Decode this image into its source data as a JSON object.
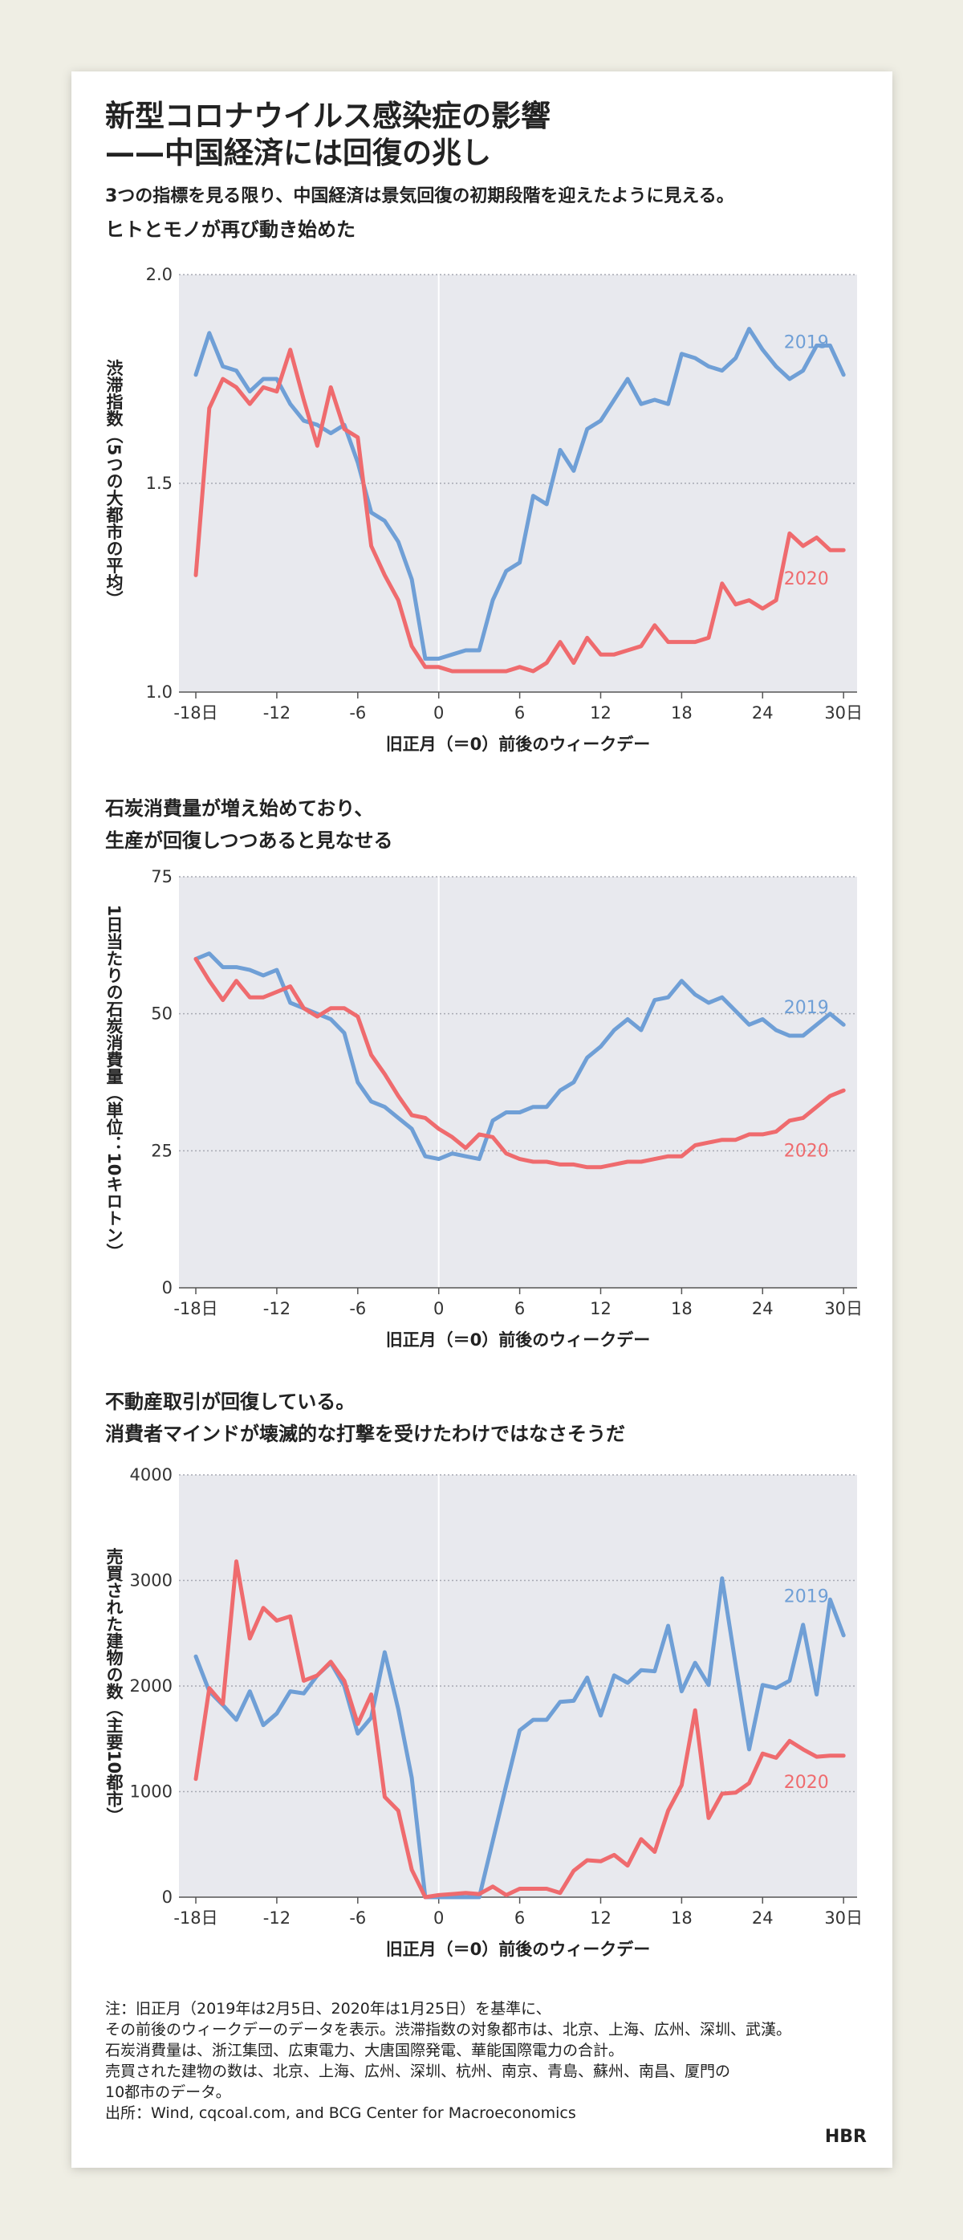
{
  "header": {
    "title": [
      "新型コロナウイルス感染症の影響",
      "——中国経済には回復の兆し"
    ],
    "subtitle": "3つの指標を見る限り、中国経済は景気回復の初期段階を迎えたように見える。"
  },
  "chart_data": [
    {
      "type": "line",
      "title": [
        "ヒトとモノが再び動き始めた"
      ],
      "xlabel": "旧正月（＝0）前後のウィークデー",
      "ylabel": "渋滞指数（5つの大都市の平均）",
      "x": [
        -18,
        -17,
        -16,
        -15,
        -14,
        -13,
        -12,
        -11,
        -10,
        -9,
        -8,
        -7,
        -6,
        -5,
        -4,
        -3,
        -2,
        -1,
        0,
        1,
        2,
        3,
        4,
        5,
        6,
        7,
        8,
        9,
        10,
        11,
        12,
        13,
        14,
        15,
        16,
        17,
        18,
        19,
        20,
        21,
        22,
        23,
        24,
        25,
        26,
        27,
        28,
        29,
        30
      ],
      "xlim": [
        -19.25,
        31
      ],
      "xticks": [
        {
          "value": -18,
          "label": "-18日"
        },
        -12,
        -6,
        0,
        6,
        12,
        18,
        24,
        {
          "value": 30,
          "label": "30日"
        }
      ],
      "ylim": [
        1,
        2
      ],
      "yticks": [
        {
          "value": 1,
          "label": "1.0"
        },
        {
          "value": 1.5,
          "label": "1.5"
        },
        {
          "value": 2,
          "label": "2.0"
        }
      ],
      "grid": true,
      "series": [
        {
          "name": "2019",
          "color": "#6f9fd6",
          "values": [
            1.76,
            1.86,
            1.78,
            1.77,
            1.72,
            1.75,
            1.75,
            1.69,
            1.65,
            1.64,
            1.62,
            1.64,
            1.55,
            1.43,
            1.41,
            1.36,
            1.27,
            1.08,
            1.08,
            1.09,
            1.1,
            1.1,
            1.22,
            1.29,
            1.31,
            1.47,
            1.45,
            1.58,
            1.53,
            1.63,
            1.65,
            1.7,
            1.75,
            1.69,
            1.7,
            1.69,
            1.81,
            1.8,
            1.78,
            1.77,
            1.8,
            1.87,
            1.82,
            1.78,
            1.75,
            1.77,
            1.83,
            1.83,
            1.76
          ]
        },
        {
          "name": "2020",
          "color": "#ef6b6e",
          "values": [
            1.28,
            1.68,
            1.75,
            1.73,
            1.69,
            1.73,
            1.72,
            1.82,
            1.7,
            1.59,
            1.73,
            1.63,
            1.61,
            1.35,
            1.28,
            1.22,
            1.11,
            1.06,
            1.06,
            1.05,
            1.05,
            1.05,
            1.05,
            1.05,
            1.06,
            1.05,
            1.07,
            1.12,
            1.07,
            1.13,
            1.09,
            1.09,
            1.1,
            1.11,
            1.16,
            1.12,
            1.12,
            1.12,
            1.13,
            1.26,
            1.21,
            1.22,
            1.2,
            1.22,
            1.38,
            1.35,
            1.37,
            1.34,
            1.34
          ]
        }
      ]
    },
    {
      "type": "line",
      "title": [
        "石炭消費量が増え始めており、",
        "生産が回復しつつあると見なせる"
      ],
      "xlabel": "旧正月（＝0）前後のウィークデー",
      "ylabel": "1日当たりの石炭消費量（単位：10キロトン）",
      "x": [
        -18,
        -17,
        -16,
        -15,
        -14,
        -13,
        -12,
        -11,
        -10,
        -9,
        -8,
        -7,
        -6,
        -5,
        -4,
        -3,
        -2,
        -1,
        0,
        1,
        2,
        3,
        4,
        5,
        6,
        7,
        8,
        9,
        10,
        11,
        12,
        13,
        14,
        15,
        16,
        17,
        18,
        19,
        20,
        21,
        22,
        23,
        24,
        25,
        26,
        27,
        28,
        29,
        30
      ],
      "xlim": [
        -19.25,
        31
      ],
      "xticks": [
        {
          "value": -18,
          "label": "-18日"
        },
        -12,
        -6,
        0,
        6,
        12,
        18,
        24,
        {
          "value": 30,
          "label": "30日"
        }
      ],
      "ylim": [
        0,
        75
      ],
      "yticks": [
        0,
        25,
        50,
        75
      ],
      "grid": true,
      "series": [
        {
          "name": "2019",
          "color": "#6f9fd6",
          "values": [
            60,
            61,
            58.5,
            58.5,
            58,
            57,
            58,
            52,
            51,
            50,
            49,
            46.5,
            37.5,
            34,
            33,
            31,
            29,
            24,
            23.5,
            24.5,
            24,
            23.5,
            30.5,
            32,
            32,
            33,
            33,
            36,
            37.5,
            42,
            44,
            47,
            49,
            47,
            52.5,
            53,
            56,
            53.5,
            52,
            53,
            50.5,
            48,
            49,
            47,
            46,
            46,
            48,
            50,
            48
          ]
        },
        {
          "name": "2020",
          "color": "#ef6b6e",
          "values": [
            60,
            56,
            52.5,
            56,
            53,
            53,
            54,
            55,
            51,
            49.5,
            51,
            51,
            49.5,
            42.5,
            39,
            35,
            31.5,
            31,
            29,
            27.5,
            25.5,
            28,
            27.5,
            24.5,
            23.5,
            23,
            23,
            22.5,
            22.5,
            22,
            22,
            22.5,
            23,
            23,
            23.5,
            24,
            24,
            26,
            26.5,
            27,
            27,
            28,
            28,
            28.5,
            30.5,
            31,
            33,
            35,
            36
          ]
        }
      ]
    },
    {
      "type": "line",
      "title": [
        "不動産取引が回復している。",
        "消費者マインドが壊滅的な打撃を受けたわけではなさそうだ"
      ],
      "xlabel": "旧正月（＝0）前後のウィークデー",
      "ylabel": "売買された建物の数（主要10都市）",
      "x": [
        -18,
        -17,
        -16,
        -15,
        -14,
        -13,
        -12,
        -11,
        -10,
        -9,
        -8,
        -7,
        -6,
        -5,
        -4,
        -3,
        -2,
        -1,
        0,
        1,
        2,
        3,
        4,
        5,
        6,
        7,
        8,
        9,
        10,
        11,
        12,
        13,
        14,
        15,
        16,
        17,
        18,
        19,
        20,
        21,
        22,
        23,
        24,
        25,
        26,
        27,
        28,
        29,
        30
      ],
      "xlim": [
        -19.25,
        31
      ],
      "xticks": [
        {
          "value": -18,
          "label": "-18日"
        },
        -12,
        -6,
        0,
        6,
        12,
        18,
        24,
        {
          "value": 30,
          "label": "30日"
        }
      ],
      "ylim": [
        0,
        4000
      ],
      "yticks": [
        0,
        1000,
        2000,
        3000,
        4000
      ],
      "grid": true,
      "series": [
        {
          "name": "2019",
          "color": "#6f9fd6",
          "values": [
            2280,
            1950,
            1820,
            1680,
            1950,
            1630,
            1740,
            1950,
            1930,
            2100,
            2220,
            2000,
            1550,
            1700,
            2320,
            1780,
            1130,
            0,
            0,
            0,
            0,
            0,
            530,
            1060,
            1580,
            1680,
            1680,
            1850,
            1860,
            2080,
            1720,
            2100,
            2030,
            2150,
            2140,
            2570,
            1950,
            2220,
            2010,
            3020,
            2200,
            1400,
            2010,
            1980,
            2050,
            2580,
            1920,
            2820,
            2480
          ]
        },
        {
          "name": "2020",
          "color": "#ef6b6e",
          "values": [
            1120,
            1980,
            1830,
            3180,
            2450,
            2740,
            2620,
            2660,
            2050,
            2100,
            2230,
            2050,
            1640,
            1920,
            950,
            820,
            260,
            0,
            20,
            30,
            40,
            30,
            100,
            20,
            80,
            80,
            80,
            40,
            250,
            350,
            340,
            400,
            300,
            550,
            430,
            820,
            1060,
            1770,
            750,
            980,
            990,
            1080,
            1360,
            1320,
            1480,
            1400,
            1330,
            1340,
            1340
          ]
        }
      ]
    }
  ],
  "notes": [
    "注：旧正月（2019年は2月5日、2020年は1月25日）を基準に、",
    "その前後のウィークデーのデータを表示。渋滞指数の対象都市は、北京、上海、広州、深圳、武漢。",
    "石炭消費量は、浙江集団、広東電力、大唐国際発電、華能国際電力の合計。",
    "売買された建物の数は、北京、上海、広州、深圳、杭州、南京、青島、蘇州、南昌、厦門の",
    "10都市のデータ。"
  ],
  "source": "出所：Wind, cqcoal.com, and BCG Center for Macroeconomics",
  "logo": "HBR"
}
